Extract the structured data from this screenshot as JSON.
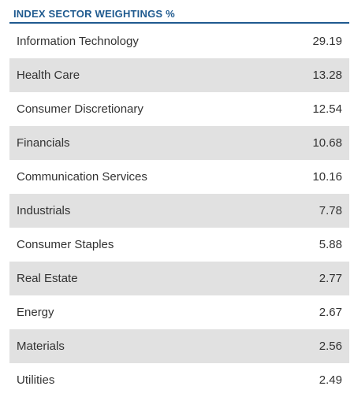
{
  "header": {
    "title": "INDEX SECTOR WEIGHTINGS %"
  },
  "sectors": [
    {
      "name": "Information Technology",
      "value": "29.19"
    },
    {
      "name": "Health Care",
      "value": "13.28"
    },
    {
      "name": "Consumer Discretionary",
      "value": "12.54"
    },
    {
      "name": "Financials",
      "value": "10.68"
    },
    {
      "name": "Communication Services",
      "value": "10.16"
    },
    {
      "name": "Industrials",
      "value": "7.78"
    },
    {
      "name": "Consumer Staples",
      "value": "5.88"
    },
    {
      "name": "Real Estate",
      "value": "2.77"
    },
    {
      "name": "Energy",
      "value": "2.67"
    },
    {
      "name": "Materials",
      "value": "2.56"
    },
    {
      "name": "Utilities",
      "value": "2.49"
    }
  ],
  "colors": {
    "header_accent": "#1f5a8f",
    "row_shade": "#e1e1e1",
    "text": "#333333"
  }
}
